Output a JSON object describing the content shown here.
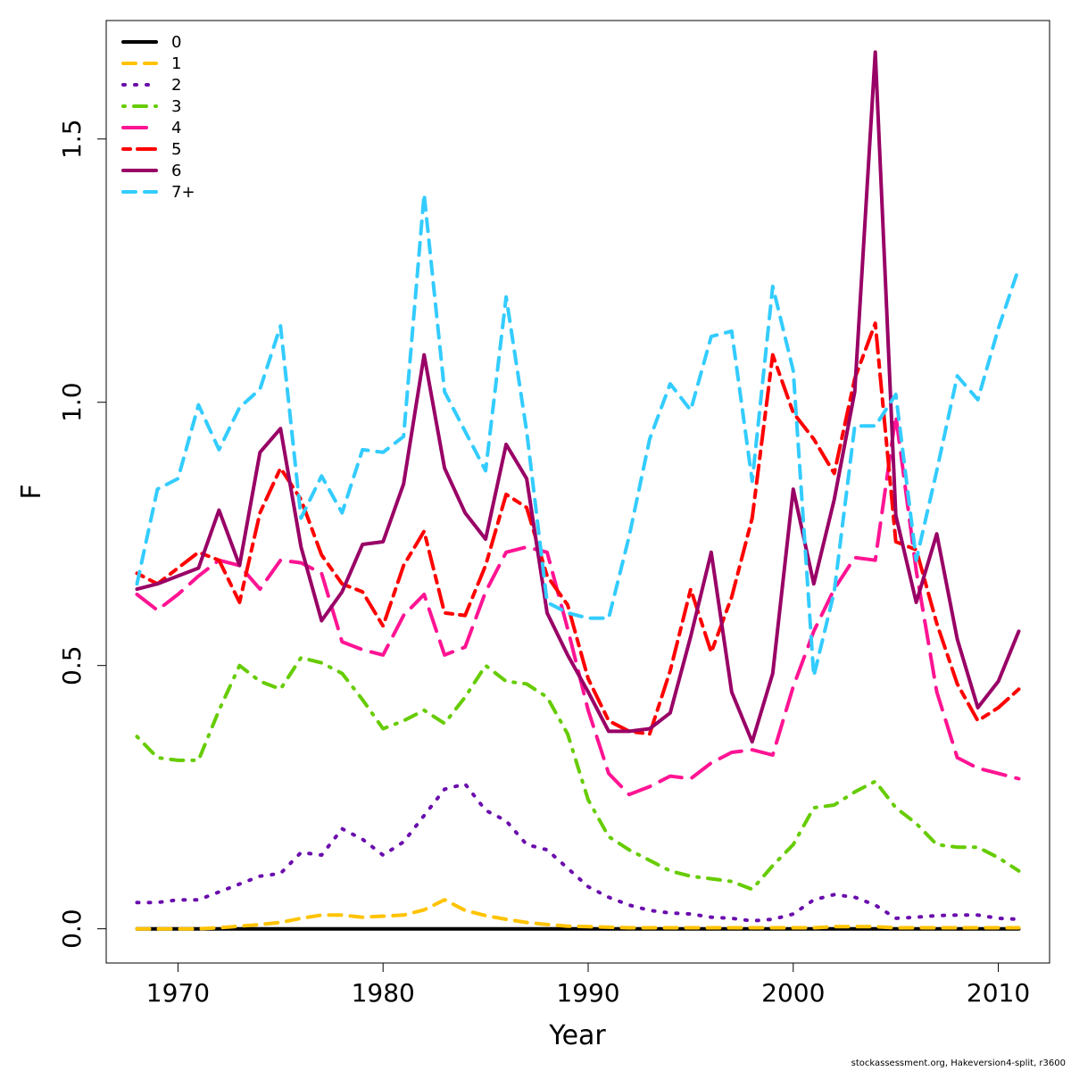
{
  "chart_data": {
    "type": "line",
    "title": "",
    "xlabel": "Year",
    "ylabel": "F",
    "xlim": [
      1966.5,
      2012.5
    ],
    "ylim": [
      -0.065,
      1.725
    ],
    "x_ticks": [
      1970,
      1980,
      1990,
      2000,
      2010
    ],
    "x_tick_labels": [
      "1970",
      "1980",
      "1990",
      "2000",
      "2010"
    ],
    "y_ticks": [
      0.0,
      0.5,
      1.0,
      1.5
    ],
    "y_tick_labels": [
      "0.0",
      "0.5",
      "1.0",
      "1.5"
    ],
    "grid": false,
    "legend_position": "top-left",
    "x": [
      1968,
      1969,
      1970,
      1971,
      1972,
      1973,
      1974,
      1975,
      1976,
      1977,
      1978,
      1979,
      1980,
      1981,
      1982,
      1983,
      1984,
      1985,
      1986,
      1987,
      1988,
      1989,
      1990,
      1991,
      1992,
      1993,
      1994,
      1995,
      1996,
      1997,
      1998,
      1999,
      2000,
      2001,
      2002,
      2003,
      2004,
      2005,
      2006,
      2007,
      2008,
      2009,
      2010,
      2011
    ],
    "series": [
      {
        "name": "0",
        "color": "#000000",
        "dash": "solid",
        "values": [
          0,
          0,
          0,
          0,
          0,
          0,
          0,
          0,
          0,
          0,
          0,
          0,
          0,
          0,
          0,
          0,
          0,
          0,
          0,
          0,
          0,
          0,
          0,
          0,
          0,
          0,
          0,
          0,
          0,
          0,
          0,
          0,
          0,
          0,
          0,
          0,
          0,
          0,
          0,
          0,
          0,
          0,
          0,
          0
        ]
      },
      {
        "name": "1",
        "color": "#FFC300",
        "dash": "dashed",
        "values": [
          0.0,
          0.0,
          0.0,
          0.0,
          0.002,
          0.005,
          0.008,
          0.012,
          0.02,
          0.026,
          0.026,
          0.022,
          0.024,
          0.026,
          0.036,
          0.055,
          0.035,
          0.025,
          0.018,
          0.012,
          0.008,
          0.005,
          0.004,
          0.003,
          0.002,
          0.002,
          0.002,
          0.002,
          0.002,
          0.002,
          0.002,
          0.002,
          0.002,
          0.002,
          0.004,
          0.004,
          0.004,
          0.002,
          0.002,
          0.002,
          0.002,
          0.002,
          0.002,
          0.002
        ]
      },
      {
        "name": "2",
        "color": "#6A0DAD",
        "dash": "dotted",
        "values": [
          0.05,
          0.05,
          0.055,
          0.055,
          0.07,
          0.085,
          0.1,
          0.105,
          0.145,
          0.14,
          0.19,
          0.17,
          0.14,
          0.165,
          0.215,
          0.265,
          0.275,
          0.225,
          0.205,
          0.16,
          0.15,
          0.115,
          0.08,
          0.06,
          0.045,
          0.035,
          0.03,
          0.028,
          0.022,
          0.02,
          0.015,
          0.018,
          0.028,
          0.055,
          0.065,
          0.06,
          0.045,
          0.02,
          0.022,
          0.025,
          0.026,
          0.026,
          0.02,
          0.018
        ]
      },
      {
        "name": "3",
        "color": "#66CC00",
        "dash": "dotdash",
        "values": [
          0.365,
          0.325,
          0.32,
          0.32,
          0.415,
          0.5,
          0.47,
          0.455,
          0.515,
          0.505,
          0.485,
          0.435,
          0.38,
          0.395,
          0.415,
          0.39,
          0.44,
          0.5,
          0.47,
          0.465,
          0.44,
          0.37,
          0.245,
          0.175,
          0.15,
          0.13,
          0.11,
          0.1,
          0.095,
          0.09,
          0.075,
          0.12,
          0.16,
          0.23,
          0.235,
          0.26,
          0.28,
          0.23,
          0.2,
          0.16,
          0.155,
          0.155,
          0.135,
          0.11
        ]
      },
      {
        "name": "4",
        "color": "#FF1493",
        "dash": "longdash",
        "values": [
          0.635,
          0.605,
          0.635,
          0.67,
          0.7,
          0.69,
          0.645,
          0.7,
          0.695,
          0.675,
          0.545,
          0.53,
          0.52,
          0.595,
          0.635,
          0.52,
          0.535,
          0.64,
          0.715,
          0.725,
          0.715,
          0.57,
          0.415,
          0.295,
          0.255,
          0.27,
          0.29,
          0.285,
          0.315,
          0.335,
          0.34,
          0.33,
          0.46,
          0.565,
          0.645,
          0.705,
          0.7,
          0.975,
          0.68,
          0.45,
          0.325,
          0.305,
          0.295,
          0.285
        ]
      },
      {
        "name": "5",
        "color": "#FF0000",
        "dash": "twodash",
        "values": [
          0.675,
          0.655,
          0.685,
          0.715,
          0.7,
          0.62,
          0.79,
          0.875,
          0.815,
          0.71,
          0.655,
          0.64,
          0.575,
          0.69,
          0.755,
          0.6,
          0.595,
          0.69,
          0.825,
          0.8,
          0.67,
          0.615,
          0.475,
          0.395,
          0.375,
          0.37,
          0.49,
          0.645,
          0.525,
          0.63,
          0.78,
          1.09,
          0.98,
          0.93,
          0.865,
          1.045,
          1.15,
          0.735,
          0.72,
          0.58,
          0.465,
          0.395,
          0.42,
          0.455
        ]
      },
      {
        "name": "6",
        "color": "#990066",
        "dash": "solid",
        "values": [
          0.645,
          0.655,
          0.67,
          0.685,
          0.795,
          0.69,
          0.905,
          0.95,
          0.725,
          0.585,
          0.64,
          0.73,
          0.735,
          0.845,
          1.09,
          0.875,
          0.79,
          0.74,
          0.92,
          0.855,
          0.6,
          0.52,
          0.45,
          0.375,
          0.375,
          0.38,
          0.41,
          0.555,
          0.715,
          0.45,
          0.355,
          0.485,
          0.835,
          0.655,
          0.815,
          1.02,
          1.665,
          0.785,
          0.62,
          0.75,
          0.55,
          0.42,
          0.47,
          0.565
        ]
      },
      {
        "name": "7+",
        "color": "#33CCFF",
        "dash": "dashed",
        "values": [
          0.655,
          0.835,
          0.855,
          0.995,
          0.91,
          0.99,
          1.025,
          1.145,
          0.78,
          0.86,
          0.79,
          0.91,
          0.905,
          0.935,
          1.395,
          1.02,
          0.945,
          0.87,
          1.2,
          0.945,
          0.62,
          0.6,
          0.59,
          0.59,
          0.745,
          0.93,
          1.035,
          0.985,
          1.125,
          1.135,
          0.85,
          1.22,
          1.06,
          0.48,
          0.64,
          0.955,
          0.955,
          1.015,
          0.7,
          0.87,
          1.05,
          1.005,
          1.14,
          1.255
        ]
      }
    ]
  },
  "footer": "stockassessment.org, Hakeversion4-split, r3600"
}
